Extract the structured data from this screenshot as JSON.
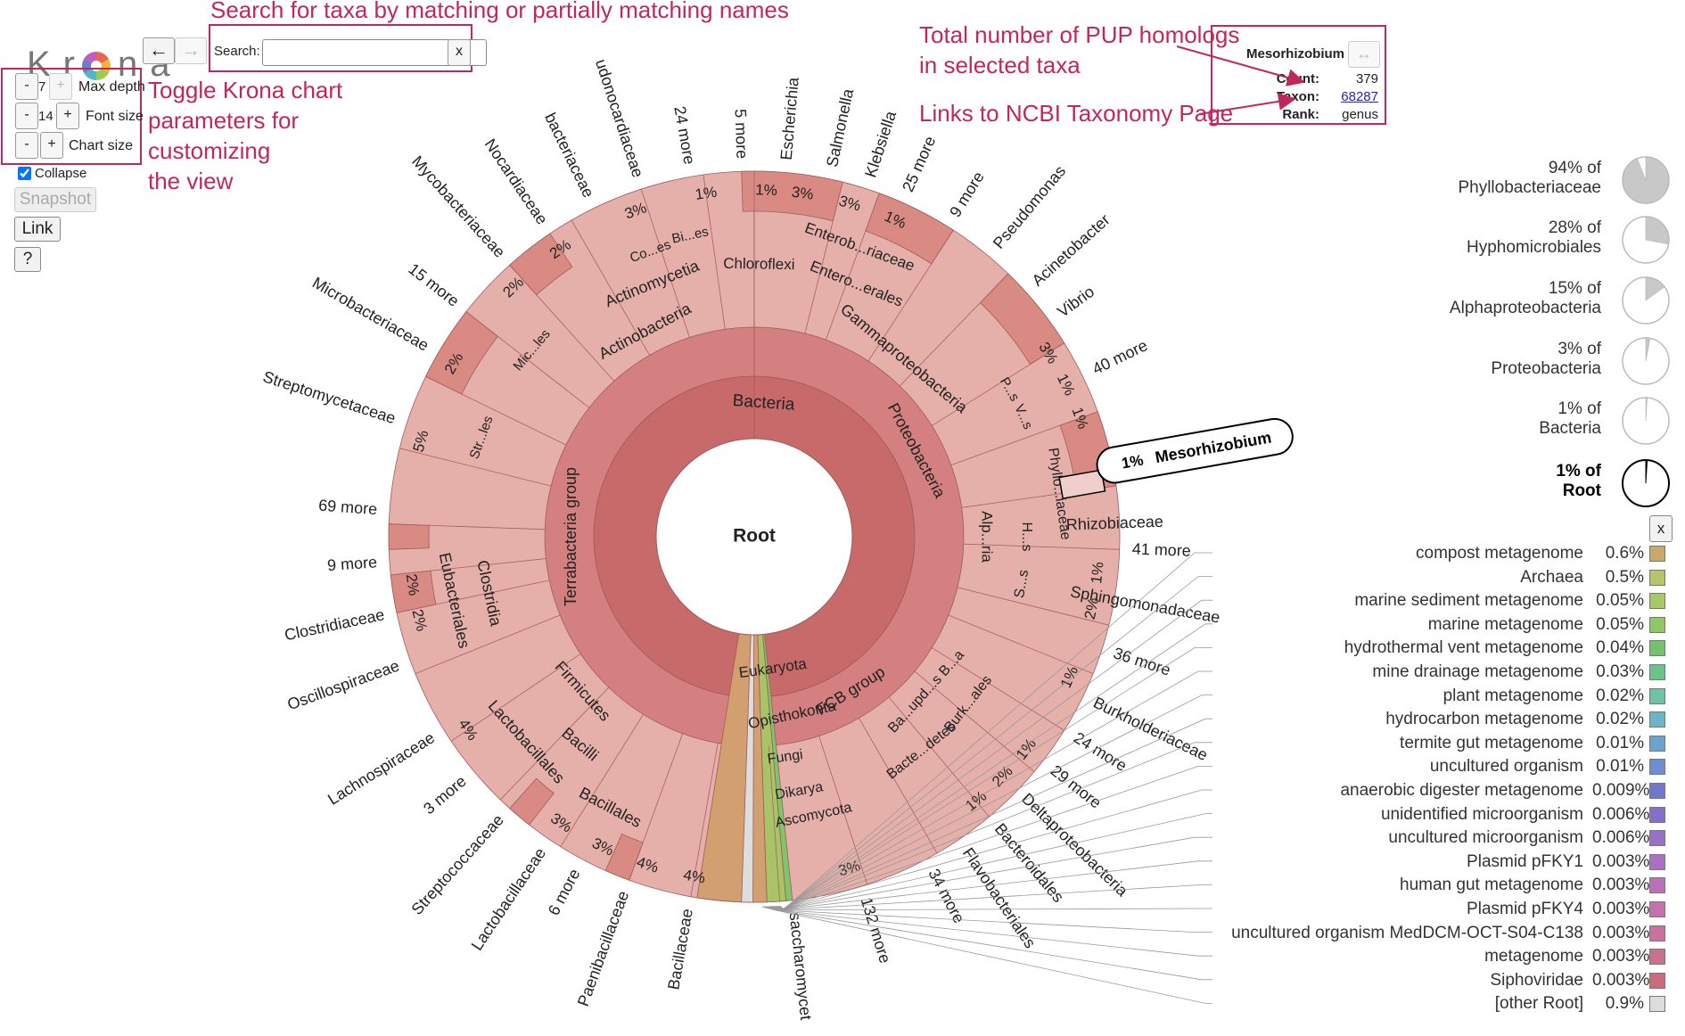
{
  "logo": {
    "left": "Kr",
    "right": "na"
  },
  "nav": {
    "back": "←",
    "forward": "→"
  },
  "search": {
    "label": "Search:",
    "value": "",
    "clear": "x"
  },
  "controls": {
    "max_depth": {
      "value": "7",
      "label": "Max depth",
      "minus": "-",
      "plus": "+"
    },
    "font_size": {
      "value": "14",
      "label": "Font size",
      "minus": "-",
      "plus": "+"
    },
    "chart_size": {
      "label": "Chart size",
      "minus": "-",
      "plus": "+"
    },
    "collapse_label": "Collapse",
    "collapse_checked": true,
    "snapshot": "Snapshot",
    "link": "Link",
    "help": "?"
  },
  "annotations": {
    "search": "Search for taxa by matching or partially matching names",
    "controls": [
      "Toggle Krona chart",
      "parameters for",
      "customizing",
      "the view"
    ],
    "count": [
      "Total number of PUP homologs",
      "in selected taxa"
    ],
    "taxon": "Links to NCBI Taxonomy Page"
  },
  "details": {
    "name": "Mesorhizobium",
    "toggle": "↔",
    "count_label": "Count:",
    "count": "379",
    "taxon_label": "Taxon:",
    "taxon": "68287",
    "rank_label": "Rank:",
    "rank": "genus"
  },
  "lineage": [
    {
      "pct": "94% of",
      "name": "Phyllobacteriaceae",
      "fraction": 0.94
    },
    {
      "pct": "28% of",
      "name": "Hyphomicrobiales",
      "fraction": 0.28
    },
    {
      "pct": "15% of",
      "name": "Alphaproteobacteria",
      "fraction": 0.15
    },
    {
      "pct": "3% of",
      "name": "Proteobacteria",
      "fraction": 0.03
    },
    {
      "pct": "1% of",
      "name": "Bacteria",
      "fraction": 0.01
    },
    {
      "pct": "1% of",
      "name": "Root",
      "fraction": 0.01
    }
  ],
  "legend_close": "x",
  "legend": [
    {
      "name": "compost metagenome",
      "pct": "0.6%",
      "color": "#c9a86a"
    },
    {
      "name": "Archaea",
      "pct": "0.5%",
      "color": "#b8c46a"
    },
    {
      "name": "marine sediment metagenome",
      "pct": "0.05%",
      "color": "#a6c964"
    },
    {
      "name": "marine metagenome",
      "pct": "0.05%",
      "color": "#8ec865"
    },
    {
      "name": "hydrothermal vent metagenome",
      "pct": "0.04%",
      "color": "#74c26c"
    },
    {
      "name": "mine drainage metagenome",
      "pct": "0.03%",
      "color": "#6cc38a"
    },
    {
      "name": "plant metagenome",
      "pct": "0.02%",
      "color": "#6cc3a8"
    },
    {
      "name": "hydrocarbon metagenome",
      "pct": "0.02%",
      "color": "#6ab6c6"
    },
    {
      "name": "termite gut metagenome",
      "pct": "0.01%",
      "color": "#6aa3cc"
    },
    {
      "name": "uncultured organism",
      "pct": "0.01%",
      "color": "#6d8fd0"
    },
    {
      "name": "anaerobic digester metagenome",
      "pct": "0.009%",
      "color": "#7178cc"
    },
    {
      "name": "unidentified microorganism",
      "pct": "0.006%",
      "color": "#8470c8"
    },
    {
      "name": "uncultured microorganism",
      "pct": "0.006%",
      "color": "#9870c6"
    },
    {
      "name": "Plasmid pFKY1",
      "pct": "0.003%",
      "color": "#aa70c4"
    },
    {
      "name": "human gut metagenome",
      "pct": "0.003%",
      "color": "#bc70bc"
    },
    {
      "name": "Plasmid pFKY4",
      "pct": "0.003%",
      "color": "#c670b0"
    },
    {
      "name": "uncultured organism MedDCM-OCT-S04-C138",
      "pct": "0.003%",
      "color": "#cc70a0"
    },
    {
      "name": "metagenome",
      "pct": "0.003%",
      "color": "#cc7090"
    },
    {
      "name": "Siphoviridae",
      "pct": "0.003%",
      "color": "#cc6a80"
    },
    {
      "name": "[other Root]",
      "pct": "0.9%",
      "color": "#dddddd"
    }
  ],
  "chart": {
    "root": "Root",
    "bacteria": "Bacteria",
    "terrabacteria": "Terrabacteria group",
    "proteobacteria": "Proteobacteria",
    "gammaproteobacteria": "Gammaproteobacteria",
    "actinobacteria": "Actinobacteria",
    "actinomycetia": "Actinomycetia",
    "firmicutes": "Firmicutes",
    "clostridia": "Clostridia",
    "bacilli": "Bacilli",
    "bacillales": "Bacillales",
    "lactobacillales": "Lactobacillales",
    "eubacteriales": "Eubacteriales",
    "chloroflexi": "Chloroflexi",
    "enterobacterales": "Entero...erales",
    "enterobacteriaceae": "Enterob...riaceae",
    "fcb": "FCB group",
    "eukaryota": "Eukaryota",
    "opisthokonta": "Opisthokonta",
    "fungi": "Fungi",
    "dikarya": "Dikarya",
    "ascomycota": "Ascomycota",
    "bacteroidetes": "Bacte...detes",
    "bacteroidetes_upd": "Ba...upd...s B...a",
    "burkholderiales": "Burk...ales",
    "alpha": "Alp...ria",
    "hyphomicrobiales": "H...s",
    "sphingomonadales": "S...s",
    "phyllobacteriaceae": "Phyllo...iaceae",
    "mesorhizobium": "Mesorhizobium",
    "mesorhizobium_pct": "1%",
    "outer_labels": {
      "escherichia": "Escherichia",
      "salmonella": "Salmonella",
      "klebsiella": "Klebsiella",
      "more25": "25 more",
      "more9a": "9 more",
      "pseudomonas": "Pseudomonas",
      "acinetobacter": "Acinetobacter",
      "vibrio": "Vibrio",
      "more40": "40 more",
      "rhizobiaceae": "Rhizobiaceae",
      "more41": "41 more",
      "sphingomonadaceae": "Sphingomonadaceae",
      "more36": "36 more",
      "burkholderiaceae": "Burkholderiaceae",
      "more24b": "24 more",
      "more29": "29 more",
      "deltaproteobacteria": "Deltaproteobacteria",
      "bacteroidales": "Bacteroidales",
      "flavobacteriales": "Flavobacteriales",
      "more34": "34 more",
      "more132": "132 more",
      "saccharomyces": "saccharomycet",
      "bacillaceae": "Bacillaceae",
      "paenibacillaceae": "Paenibacillaceae",
      "more6": "6 more",
      "lactobacillaceae": "Lactobacillaceae",
      "streptococcaceae": "Streptococcaceae",
      "more3": "3 more",
      "lachnospiraceae": "Lachnospiraceae",
      "oscillospiraceae": "Oscillospiraceae",
      "clostridiaceae": "Clostridiaceae",
      "more9b": "9 more",
      "more69": "69 more",
      "streptomycetaceae": "Streptomycetaceae",
      "microbacteriaceae": "Microbacteriaceae",
      "more15": "15 more",
      "mycobacteriaceae": "Mycobacteriaceae",
      "nocardiaceae": "Nocardiaceae",
      "bacteriaceae": "bacteriaceae",
      "rhodocardiaceae": "udonocardiaceae",
      "more24a": "24 more",
      "more5": "5 more"
    },
    "pcts": {
      "p1": "3%",
      "p2": "3%",
      "p3": "1%",
      "p4": "3%",
      "p5": "1%",
      "p6": "1%",
      "p7": "1%",
      "p8": "2%",
      "p9": "1%",
      "p10": "1%",
      "p11": "2%",
      "p12": "1%",
      "p13": "3%",
      "p14": "4%",
      "p15": "4%",
      "p16": "3%",
      "p17": "3%",
      "p18": "4%",
      "p19": "2%",
      "p20": "2%",
      "p21": "5%",
      "p22": "2%",
      "p23": "2%",
      "p24": "2%",
      "p25": "3%",
      "p26": "1%",
      "p27": "1%"
    },
    "small": {
      "mic": "Mic...les",
      "str": "Str...les",
      "co": "Co...es",
      "bi": "Bi...es",
      "ps": "P...s",
      "vs": "V...s",
      "dots": "..."
    }
  }
}
